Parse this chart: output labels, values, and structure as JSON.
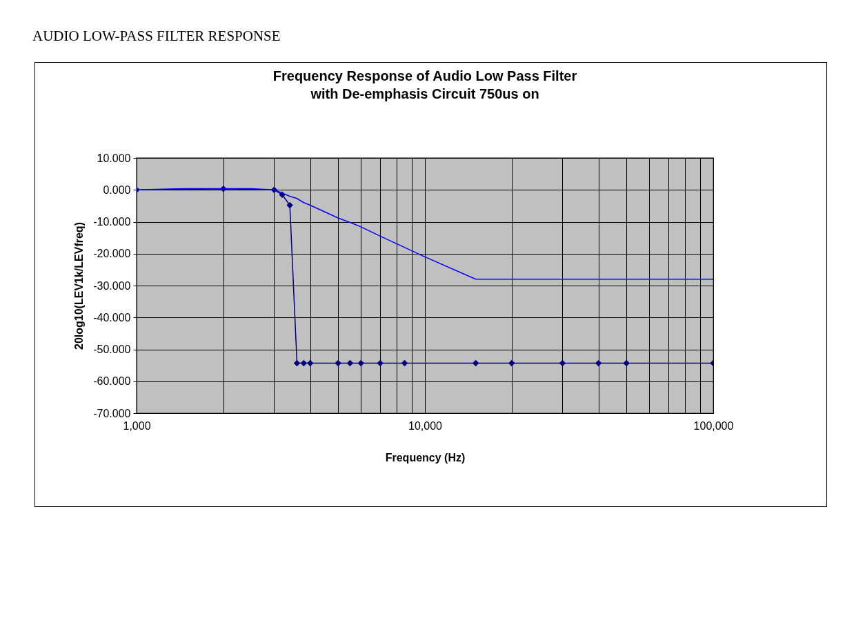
{
  "chart_data": {
    "type": "line",
    "title": "Frequency Response of Audio Low Pass Filter\nwith De-emphasis Circuit 750us on",
    "annotations": [
      "AUDIO LOW-PASS FILTER RESPONSE"
    ],
    "xlabel": "Frequency (Hz)",
    "ylabel": "20log10(LEV1k/LEVfreq)",
    "log": "x",
    "grid": true,
    "xlim": [
      1000,
      100000
    ],
    "xticks": [
      {
        "value": 1000,
        "label": "1,000"
      },
      {
        "value": 2000,
        "label": null
      },
      {
        "value": 3000,
        "label": null
      },
      {
        "value": 4000,
        "label": null
      },
      {
        "value": 5000,
        "label": null
      },
      {
        "value": 6000,
        "label": null
      },
      {
        "value": 7000,
        "label": null
      },
      {
        "value": 8000,
        "label": null
      },
      {
        "value": 9000,
        "label": null
      },
      {
        "value": 10000,
        "label": "10,000"
      },
      {
        "value": 20000,
        "label": null
      },
      {
        "value": 30000,
        "label": null
      },
      {
        "value": 40000,
        "label": null
      },
      {
        "value": 50000,
        "label": null
      },
      {
        "value": 60000,
        "label": null
      },
      {
        "value": 70000,
        "label": null
      },
      {
        "value": 80000,
        "label": null
      },
      {
        "value": 90000,
        "label": null
      },
      {
        "value": 100000,
        "label": "100,000"
      }
    ],
    "ylim": [
      -70,
      10
    ],
    "yticks": [
      {
        "value": 10,
        "label": "10.000"
      },
      {
        "value": 0,
        "label": "0.000"
      },
      {
        "value": -10,
        "label": "-10.000"
      },
      {
        "value": -20,
        "label": "-20.000"
      },
      {
        "value": -30,
        "label": "-30.000"
      },
      {
        "value": -40,
        "label": "-40.000"
      },
      {
        "value": -50,
        "label": "-50.000"
      },
      {
        "value": -60,
        "label": "-60.000"
      },
      {
        "value": -70,
        "label": "-70.000"
      }
    ],
    "series": [
      {
        "color": "#000080",
        "marker": "diamond",
        "x": [
          1000,
          2000,
          3000,
          3200,
          3400,
          3600,
          3800,
          4000,
          5000,
          5500,
          6000,
          7000,
          8500,
          15000,
          20000,
          30000,
          40000,
          50000,
          100000
        ],
        "values": [
          0,
          0.3,
          0,
          -1.5,
          -4.8,
          -54.3,
          -54.3,
          -54.3,
          -54.3,
          -54.3,
          -54.3,
          -54.3,
          -54.3,
          -54.3,
          -54.3,
          -54.3,
          -54.3,
          -54.3,
          -54.3
        ]
      },
      {
        "color": "#0000ff",
        "marker": "none",
        "x": [
          1000,
          1500,
          2500,
          3000,
          3200,
          3400,
          3600,
          3800,
          4000,
          5000,
          5500,
          6000,
          7000,
          10000,
          15000,
          100000
        ],
        "values": [
          0,
          0.4,
          0.4,
          0,
          -1,
          -2,
          -2.7,
          -4,
          -4.8,
          -8.8,
          -10.2,
          -11.6,
          -14.5,
          -21,
          -28,
          -28
        ]
      }
    ]
  }
}
